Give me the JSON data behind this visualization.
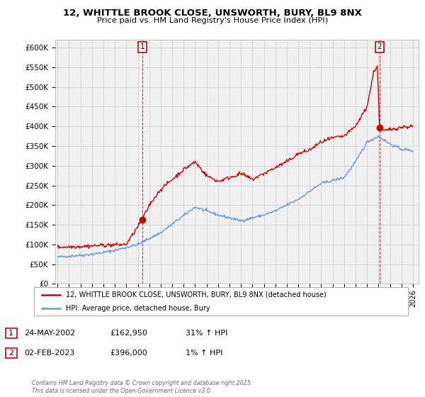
{
  "title": "12, WHITTLE BROOK CLOSE, UNSWORTH, BURY, BL9 8NX",
  "subtitle": "Price paid vs. HM Land Registry's House Price Index (HPI)",
  "legend_label1": "12, WHITTLE BROOK CLOSE, UNSWORTH, BURY, BL9 8NX (detached house)",
  "legend_label2": "HPI: Average price, detached house, Bury",
  "annotation1_label": "1",
  "annotation1_date": "24-MAY-2002",
  "annotation1_price": "£162,950",
  "annotation1_hpi": "31% ↑ HPI",
  "annotation2_label": "2",
  "annotation2_date": "02-FEB-2023",
  "annotation2_price": "£396,000",
  "annotation2_hpi": "1% ↑ HPI",
  "footer": "Contains HM Land Registry data © Crown copyright and database right 2025.\nThis data is licensed under the Open Government Licence v3.0.",
  "color_red": "#cc0000",
  "color_blue": "#6699cc",
  "color_grid": "#cccccc",
  "bg_color": "#ffffff",
  "ylim": [
    0,
    620000
  ],
  "yticks": [
    0,
    50000,
    100000,
    150000,
    200000,
    250000,
    300000,
    350000,
    400000,
    450000,
    500000,
    550000,
    600000
  ],
  "xlim_start": 1994.8,
  "xlim_end": 2026.5,
  "marker1_x": 2002.39,
  "marker1_y": 162950,
  "marker2_x": 2023.1,
  "marker2_y": 396000,
  "hpi_xp": [
    1995,
    1998,
    2000,
    2002,
    2004,
    2007,
    2009,
    2011,
    2013,
    2014,
    2016,
    2018,
    2020,
    2021,
    2022,
    2023,
    2024,
    2025,
    2026
  ],
  "hpi_fp": [
    68000,
    75000,
    85000,
    100000,
    130000,
    195000,
    175000,
    160000,
    175000,
    185000,
    215000,
    255000,
    270000,
    310000,
    360000,
    375000,
    355000,
    342000,
    338000
  ],
  "price_xp": [
    1995,
    1997,
    1999,
    2001,
    2002.4,
    2003,
    2004,
    2005,
    2006,
    2007,
    2008,
    2009,
    2010,
    2011,
    2012,
    2013,
    2014,
    2015,
    2016,
    2017,
    2018,
    2019,
    2020,
    2021,
    2022,
    2022.6,
    2022.9,
    2023.1,
    2023.5,
    2024,
    2025,
    2026
  ],
  "price_fp": [
    93000,
    95000,
    98000,
    100000,
    162950,
    200000,
    240000,
    265000,
    290000,
    310000,
    275000,
    260000,
    270000,
    280000,
    265000,
    280000,
    295000,
    310000,
    330000,
    340000,
    360000,
    370000,
    375000,
    400000,
    450000,
    540000,
    553000,
    396000,
    388000,
    392000,
    398000,
    400000
  ]
}
